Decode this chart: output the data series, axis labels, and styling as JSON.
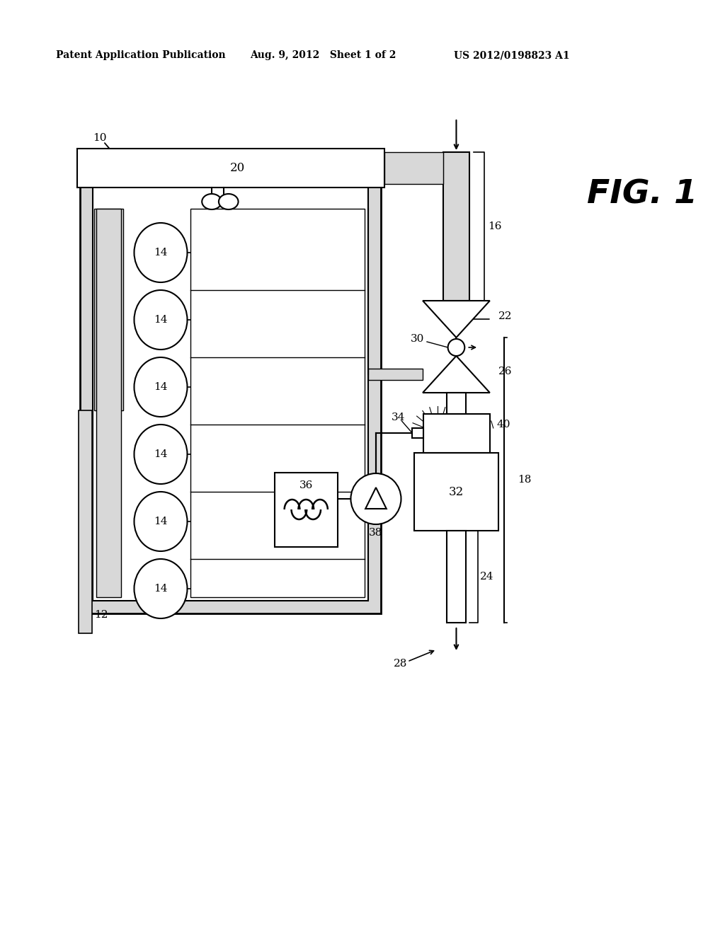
{
  "header_left": "Patent Application Publication",
  "header_mid": "Aug. 9, 2012   Sheet 1 of 2",
  "header_right": "US 2012/0198823 A1",
  "fig_label": "FIG. 1",
  "bg_color": "#ffffff",
  "line_color": "#000000",
  "gray_color": "#c0c0c0",
  "light_gray": "#d8d8d8"
}
